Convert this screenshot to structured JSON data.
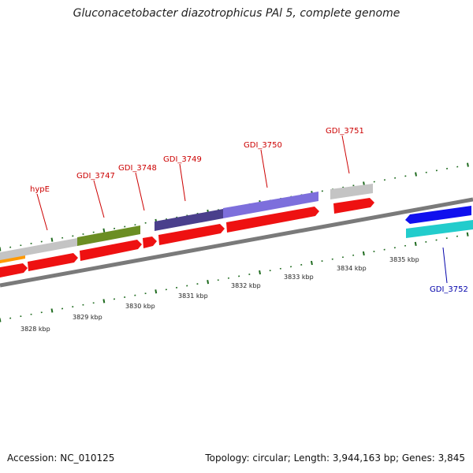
{
  "title": "Gluconacetobacter diazotrophicus PAl 5, complete genome",
  "footer": {
    "accession": "Accession: NC_010125",
    "summary": "Topology: circular; Length: 3,944,163 bp; Genes: 3,845"
  },
  "colors": {
    "backbone": "#777777",
    "tick": "#1f6b1f",
    "gene_label_red": "#cc0000",
    "gene_label_blue": "#0000aa",
    "cds_red": "#ee1111",
    "gray_feature": "#bbbbbb",
    "olive_feature": "#6b8e23",
    "dark_purple_feature": "#4a3f8c",
    "light_purple_feature": "#7d6fdc",
    "orange_feature": "#ff9900",
    "blue_feature": "#1010ee",
    "cyan_feature": "#22cccc"
  },
  "scale_labels": [
    "3828 kbp",
    "3829 kbp",
    "3830 kbp",
    "3831 kbp",
    "3832 kbp",
    "3833 kbp",
    "3834 kbp",
    "3835 kbp"
  ],
  "gene_labels": [
    {
      "text": "hypE",
      "strand": "forward"
    },
    {
      "text": "GDI_3747",
      "strand": "forward"
    },
    {
      "text": "GDI_3748",
      "strand": "forward"
    },
    {
      "text": "GDI_3749",
      "strand": "forward"
    },
    {
      "text": "GDI_3750",
      "strand": "forward"
    },
    {
      "text": "GDI_3751",
      "strand": "forward"
    },
    {
      "text": "GDI_3752",
      "strand": "reverse"
    }
  ]
}
